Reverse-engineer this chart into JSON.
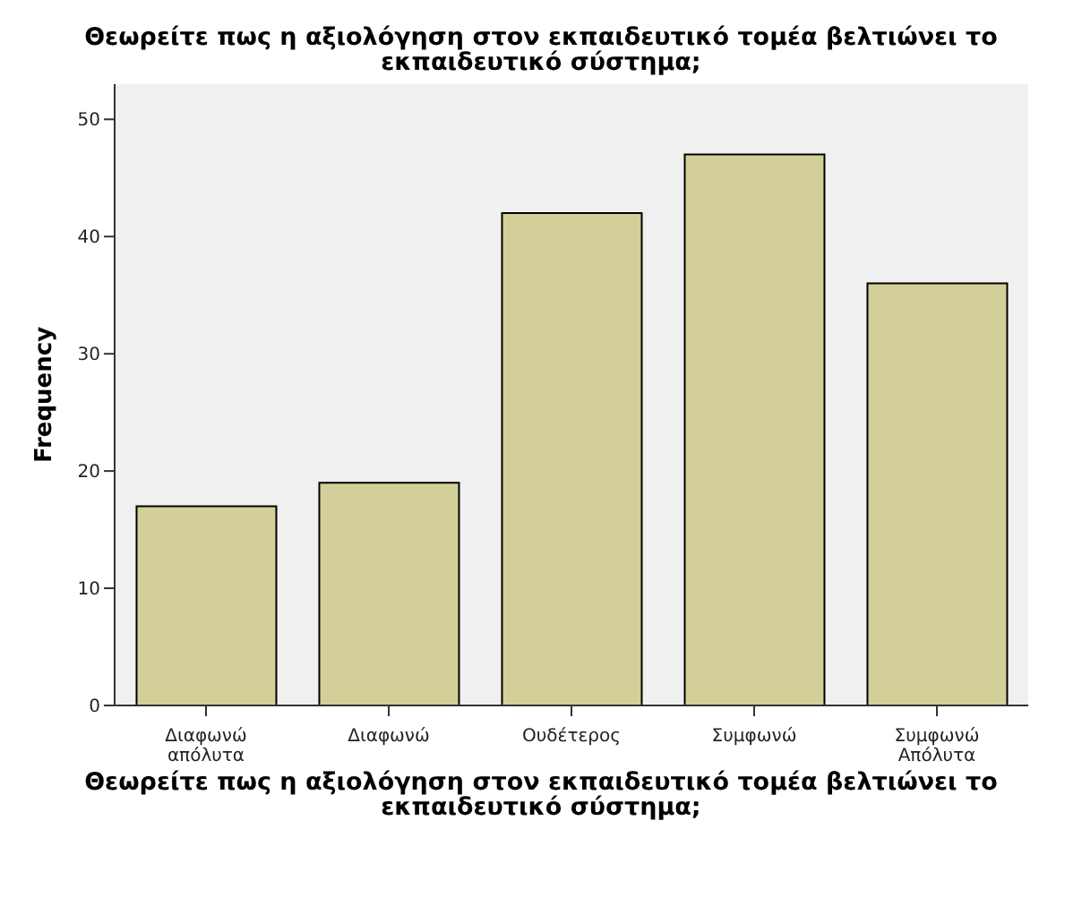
{
  "chart_data": {
    "type": "bar",
    "title": "Θεωρείτε πως η αξιολόγηση στον εκπαιδευτικό τομέα βελτιώνει το εκπαιδευτικό σύστημα;",
    "xlabel": "Θεωρείτε πως η αξιολόγηση στον εκπαιδευτικό τομέα βελτιώνει το εκπαιδευτικό σύστημα;",
    "ylabel": "Frequency",
    "categories": [
      "Διαφωνώ απόλυτα",
      "Διαφωνώ",
      "Ουδέτερος",
      "Συμφωνώ",
      "Συμφωνώ Απόλυτα"
    ],
    "values": [
      17,
      19,
      42,
      47,
      36
    ],
    "color": "#d3cf98",
    "ylim": [
      0,
      53
    ],
    "yticks": [
      0,
      10,
      20,
      30,
      40,
      50
    ]
  }
}
